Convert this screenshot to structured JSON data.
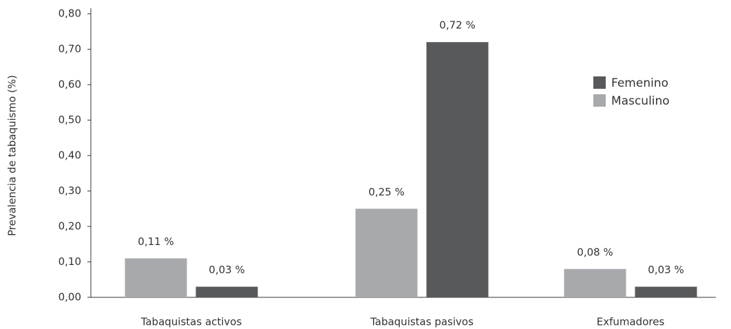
{
  "chart_data": {
    "type": "bar",
    "y_label": "Prevalencia de tabaquismo (%)",
    "categories": [
      "Tabaquistas activos",
      "Tabaquistas pasivos",
      "Exfumadores"
    ],
    "series": [
      {
        "name": "Masculino",
        "color": "#a7a9ac",
        "values": [
          0.11,
          0.25,
          0.08
        ],
        "value_labels": [
          "0,11 %",
          "0,25 %",
          "0,08 %"
        ]
      },
      {
        "name": "Femenino",
        "color": "#58595b",
        "values": [
          0.03,
          0.72,
          0.03
        ],
        "value_labels": [
          "0,03 %",
          "0,72 %",
          "0,03 %"
        ]
      }
    ],
    "ylim": [
      0,
      0.8
    ],
    "yticks": [
      {
        "value": 0,
        "label": "0,00"
      },
      {
        "value": 0.1,
        "label": "0,10"
      },
      {
        "value": 0.2,
        "label": "0,20"
      },
      {
        "value": 0.3,
        "label": "0,30"
      },
      {
        "value": 0.4,
        "label": "0,40"
      },
      {
        "value": 0.5,
        "label": "0,50"
      },
      {
        "value": 0.6,
        "label": "0,60"
      },
      {
        "value": 0.7,
        "label": "0,70"
      },
      {
        "value": 0.8,
        "label": "0,80"
      }
    ],
    "grid": false,
    "legend": "upper right"
  }
}
